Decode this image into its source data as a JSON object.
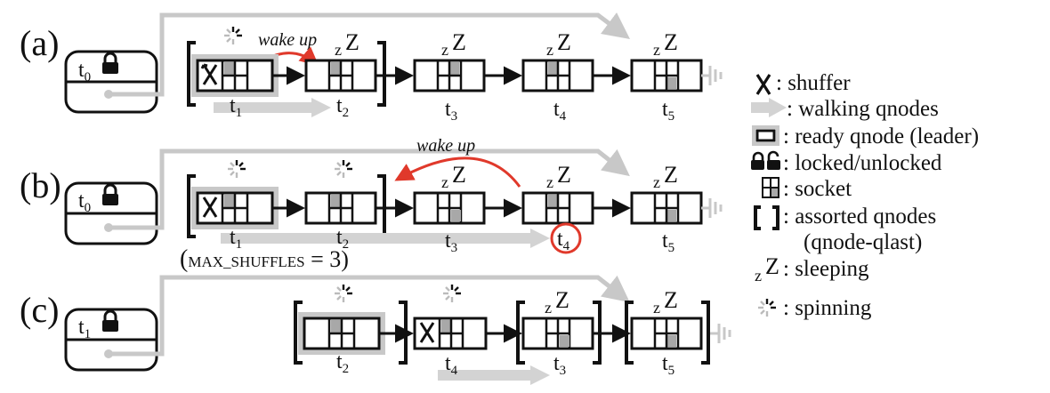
{
  "rows": [
    {
      "label": "(a)",
      "lock": {
        "thread": "t",
        "sub": "0"
      },
      "wake_label": "wake up",
      "threads": [
        {
          "t": "t",
          "sub": "1"
        },
        {
          "t": "t",
          "sub": "2"
        },
        {
          "t": "t",
          "sub": "3"
        },
        {
          "t": "t",
          "sub": "4"
        },
        {
          "t": "t",
          "sub": "5"
        }
      ]
    },
    {
      "label": "(b)",
      "lock": {
        "thread": "t",
        "sub": "0"
      },
      "wake_label": "wake up",
      "threads": [
        {
          "t": "t",
          "sub": "1"
        },
        {
          "t": "t",
          "sub": "2"
        },
        {
          "t": "t",
          "sub": "3"
        },
        {
          "t": "t",
          "sub": "4"
        },
        {
          "t": "t",
          "sub": "5"
        }
      ],
      "note": {
        "open": "(",
        "text": "MAX_SHUFFLES",
        "eq": " = 3)"
      }
    },
    {
      "label": "(c)",
      "lock": {
        "thread": "t",
        "sub": "1"
      },
      "threads": [
        {
          "t": "t",
          "sub": "2"
        },
        {
          "t": "t",
          "sub": "4"
        },
        {
          "t": "t",
          "sub": "3"
        },
        {
          "t": "t",
          "sub": "5"
        }
      ]
    }
  ],
  "sleep_glyph": {
    "small": "z",
    "big": "Z"
  },
  "legend": [
    {
      "icon": "shuffler-icon",
      "text": ": shuffer"
    },
    {
      "icon": "walking-arrow-icon",
      "text": ": walking qnodes"
    },
    {
      "icon": "ready-qnode-icon",
      "text": ": ready qnode (leader)"
    },
    {
      "icon": "lock-icon",
      "text": ": locked/unlocked"
    },
    {
      "icon": "socket-icon",
      "text": ": socket"
    },
    {
      "icon": "bracket-icon",
      "text": ": assorted qnodes"
    },
    {
      "icon": "",
      "text": "(qnode-qlast)"
    },
    {
      "icon": "sleeping-icon",
      "text": ": sleeping"
    },
    {
      "icon": "spinner-icon",
      "text": ": spinning"
    }
  ],
  "colors": {
    "red": "#e0392b",
    "gray": "#d3d3d3",
    "mid": "#a8a8a8",
    "dark": "#111111"
  }
}
